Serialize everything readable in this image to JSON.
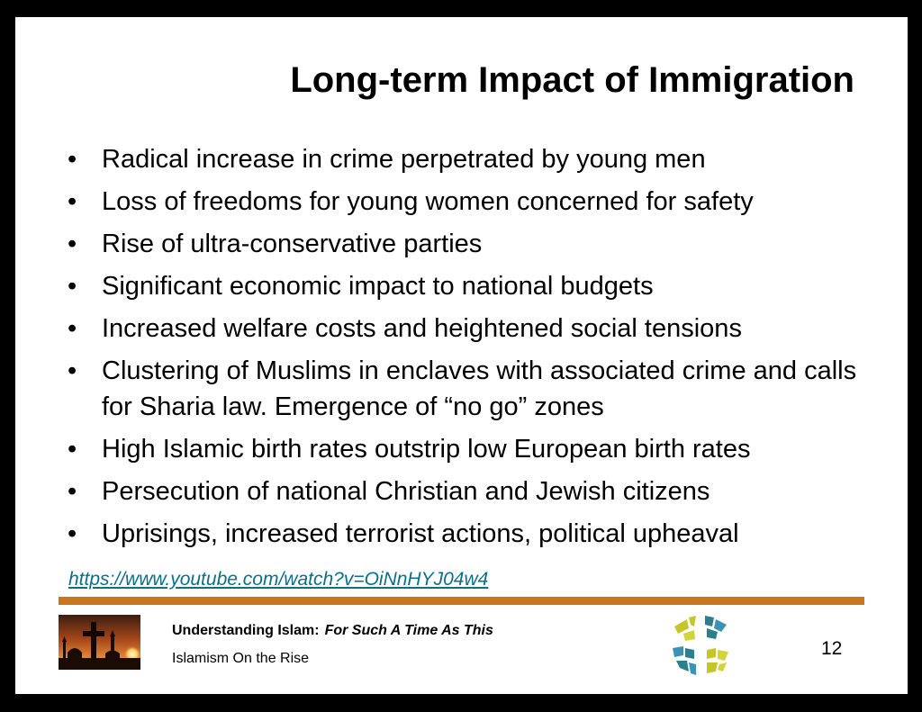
{
  "slide": {
    "title": "Long-term Impact of Immigration",
    "bullet_glyph": "•",
    "bullets": [
      "Radical increase in crime perpetrated by young men",
      "Loss of freedoms for young women concerned for safety",
      "Rise of ultra-conservative parties",
      "Significant economic impact to national budgets",
      "Increased welfare costs and heightened social tensions",
      "Clustering of Muslims in enclaves with associated crime and calls for Sharia law. Emergence of “no go” zones",
      "High Islamic birth rates outstrip low European birth rates",
      "Persecution of national Christian and Jewish citizens",
      "Uprisings, increased terrorist actions, political upheaval"
    ],
    "link": "https://www.youtube.com/watch?v=OiNnHYJ04w4"
  },
  "footer": {
    "series_title": "Understanding Islam:",
    "series_subtitle": "For Such A Time As This",
    "lesson": "Islamism On the Rise",
    "page_number": "12",
    "photo_icon": "cross-and-mosque-sunset-photo",
    "mark_icon": "church-cross-mark-icon"
  },
  "colors": {
    "rule": "#c9761e",
    "link": "#0b6f86",
    "mark_yellow": "#c4c62a",
    "mark_teal": "#2c7f8c",
    "mark_blue": "#3a93b2"
  }
}
